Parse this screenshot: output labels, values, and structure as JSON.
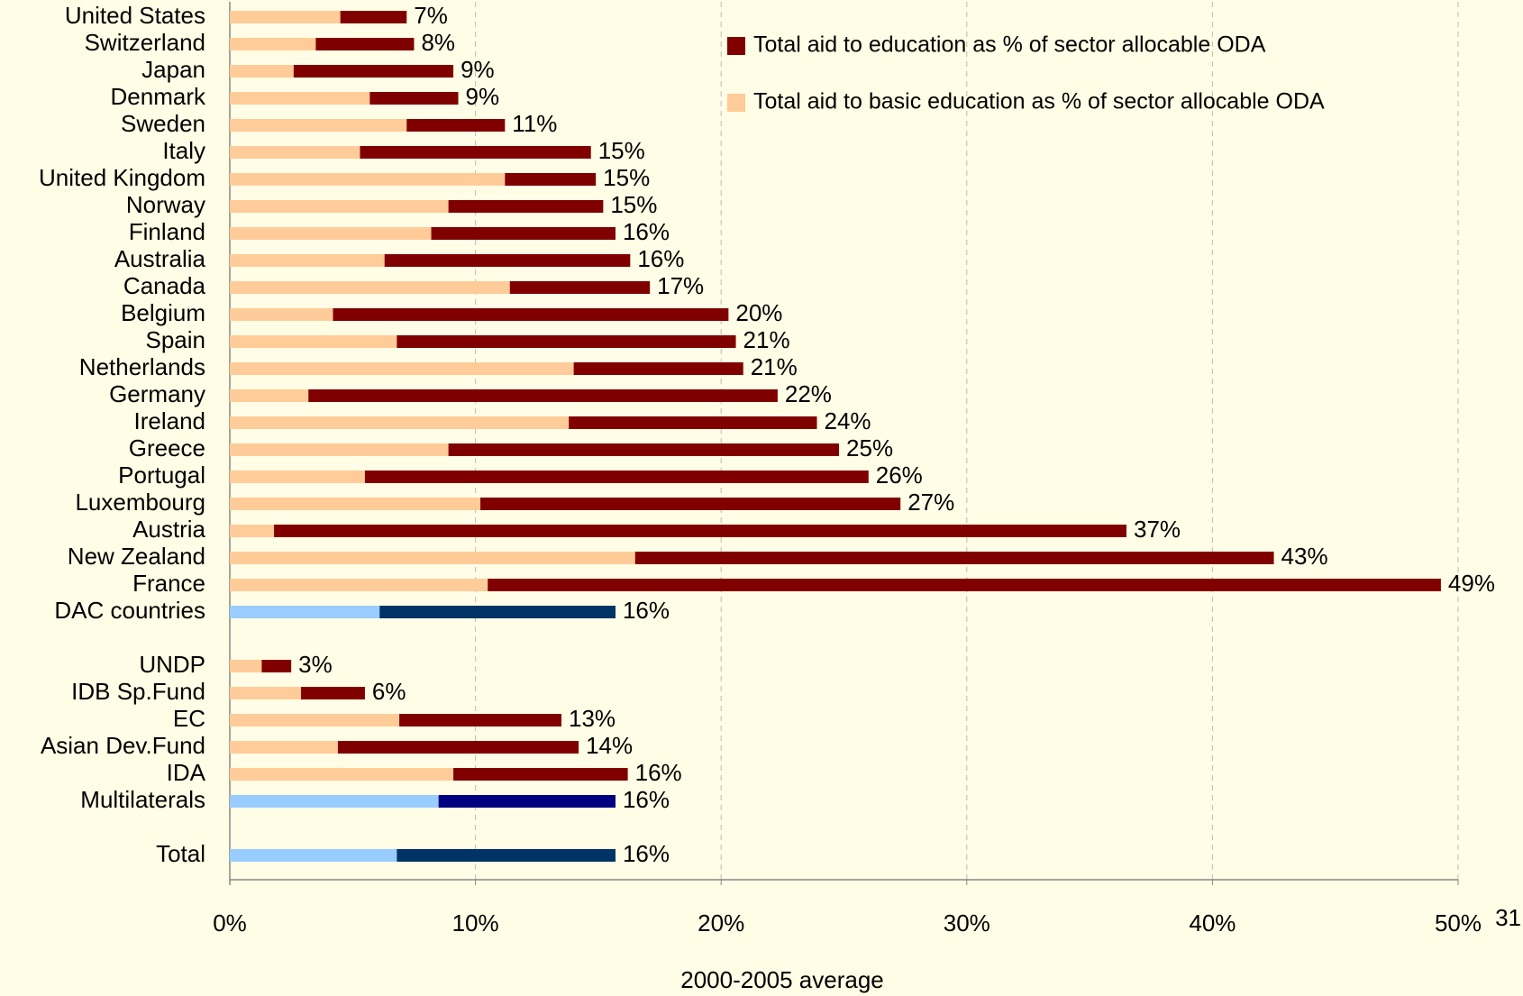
{
  "chart_data": {
    "type": "bar",
    "orientation": "horizontal",
    "overlap": true,
    "categories": [
      "United States",
      "Switzerland",
      "Japan",
      "Denmark",
      "Sweden",
      "Italy",
      "United Kingdom",
      "Norway",
      "Finland",
      "Australia",
      "Canada",
      "Belgium",
      "Spain",
      "Netherlands",
      "Germany",
      "Ireland",
      "Greece",
      "Portugal",
      "Luxembourg",
      "Austria",
      "New Zealand",
      "France",
      "DAC countries",
      null,
      "UNDP",
      "IDB Sp.Fund",
      "EC",
      "Asian Dev.Fund",
      "IDA",
      "Multilaterals",
      null,
      "Total"
    ],
    "series": [
      {
        "name": "Total aid to education as % of sector allocable ODA",
        "color": "#800000",
        "colors": [
          "#800000",
          "#800000",
          "#800000",
          "#800000",
          "#800000",
          "#800000",
          "#800000",
          "#800000",
          "#800000",
          "#800000",
          "#800000",
          "#800000",
          "#800000",
          "#800000",
          "#800000",
          "#800000",
          "#800000",
          "#800000",
          "#800000",
          "#800000",
          "#800000",
          "#800000",
          "#003366",
          null,
          "#800000",
          "#800000",
          "#800000",
          "#800000",
          "#800000",
          "#000080",
          null,
          "#003366"
        ],
        "values": [
          7.2,
          7.5,
          9.1,
          9.3,
          11.2,
          14.7,
          14.9,
          15.2,
          15.7,
          16.3,
          17.1,
          20.3,
          20.6,
          20.9,
          22.3,
          23.9,
          24.8,
          26.0,
          27.3,
          36.5,
          42.5,
          49.3,
          15.7,
          null,
          2.5,
          5.5,
          13.5,
          14.2,
          16.2,
          15.7,
          null,
          15.7
        ],
        "value_labels": [
          "7%",
          "8%",
          "9%",
          "9%",
          "11%",
          "15%",
          "15%",
          "15%",
          "16%",
          "16%",
          "17%",
          "20%",
          "21%",
          "21%",
          "22%",
          "24%",
          "25%",
          "26%",
          "27%",
          "37%",
          "43%",
          "49%",
          "16%",
          null,
          "3%",
          "6%",
          "13%",
          "14%",
          "16%",
          "16%",
          null,
          "16%"
        ]
      },
      {
        "name": "Total aid to basic education as % of sector allocable ODA",
        "color": "#FFCC99",
        "colors": [
          "#FFCC99",
          "#FFCC99",
          "#FFCC99",
          "#FFCC99",
          "#FFCC99",
          "#FFCC99",
          "#FFCC99",
          "#FFCC99",
          "#FFCC99",
          "#FFCC99",
          "#FFCC99",
          "#FFCC99",
          "#FFCC99",
          "#FFCC99",
          "#FFCC99",
          "#FFCC99",
          "#FFCC99",
          "#FFCC99",
          "#FFCC99",
          "#FFCC99",
          "#FFCC99",
          "#FFCC99",
          "#99CCFF",
          null,
          "#FFCC99",
          "#FFCC99",
          "#FFCC99",
          "#FFCC99",
          "#FFCC99",
          "#99CCFF",
          null,
          "#99CCFF"
        ],
        "values": [
          4.5,
          3.5,
          2.6,
          5.7,
          7.2,
          5.3,
          11.2,
          8.9,
          8.2,
          6.3,
          11.4,
          4.2,
          6.8,
          14.0,
          3.2,
          13.8,
          8.9,
          5.5,
          10.2,
          1.8,
          16.5,
          10.5,
          6.1,
          null,
          1.3,
          2.9,
          6.9,
          4.4,
          9.1,
          8.5,
          null,
          6.8
        ]
      }
    ],
    "xlabel": "2000-2005 average",
    "xlim": [
      0,
      50
    ],
    "xticks": [
      {
        "value": 0,
        "label": "0%"
      },
      {
        "value": 10,
        "label": "10%"
      },
      {
        "value": 20,
        "label": "20%"
      },
      {
        "value": 30,
        "label": "30%"
      },
      {
        "value": 40,
        "label": "40%"
      },
      {
        "value": 50,
        "label": "50%"
      }
    ],
    "grid": true,
    "legend": "top-right",
    "page_number": "31"
  }
}
